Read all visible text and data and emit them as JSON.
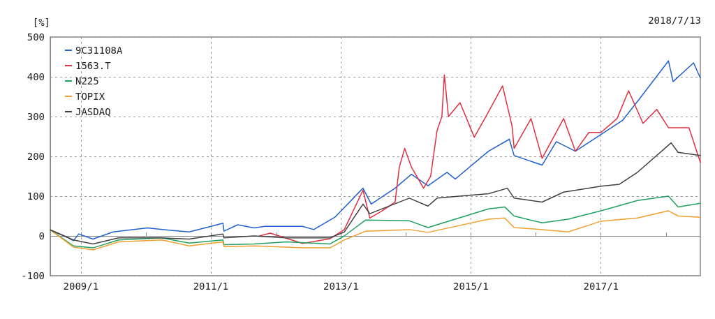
{
  "chart_data": {
    "type": "line",
    "ylabel": "[%]",
    "annotations": [
      "2018/7/13"
    ],
    "xlim": [
      "2008-07-13",
      "2018-07-13"
    ],
    "xticks": [
      {
        "value": "2009-01-01",
        "label": "2009/1"
      },
      {
        "value": "2010-01-01",
        "label": null
      },
      {
        "value": "2011-01-01",
        "label": "2011/1"
      },
      {
        "value": "2012-01-01",
        "label": null
      },
      {
        "value": "2013-01-01",
        "label": "2013/1"
      },
      {
        "value": "2014-01-01",
        "label": null
      },
      {
        "value": "2015-01-01",
        "label": "2015/1"
      },
      {
        "value": "2016-01-01",
        "label": null
      },
      {
        "value": "2017-01-01",
        "label": "2017/1"
      },
      {
        "value": "2018-01-01",
        "label": null
      }
    ],
    "ylim": [
      -100,
      500
    ],
    "yticks": [
      -100,
      0,
      100,
      200,
      300,
      400,
      500
    ],
    "grid": true,
    "legend": "top left",
    "marker": "none",
    "line_style": "solid",
    "series": [
      {
        "name": "9C31108A",
        "color": "#2060d0",
        "x": [
          "2008-07-14",
          "2008-10-10",
          "2008-11-20",
          "2008-12-20",
          "2009-03-10",
          "2009-07-01",
          "2010-01-10",
          "2010-05-01",
          "2010-09-01",
          "2011-01-10",
          "2011-03-10",
          "2011-03-16",
          "2011-06-01",
          "2011-09-01",
          "2011-11-01",
          "2012-05-30",
          "2012-08-01",
          "2012-11-28",
          "2013-05-05",
          "2013-06-20",
          "2013-11-01",
          "2014-02-01",
          "2014-05-05",
          "2014-08-20",
          "2014-10-05",
          "2015-04-10",
          "2015-08-05",
          "2015-09-01",
          "2016-02-05",
          "2016-04-25",
          "2016-08-10",
          "2017-01-01",
          "2017-05-01",
          "2017-08-01",
          "2018-01-15",
          "2018-02-10",
          "2018-06-05",
          "2018-07-13"
        ],
        "values": [
          15,
          -2,
          -12,
          5,
          -8,
          10,
          20,
          15,
          10,
          25,
          32,
          12,
          28,
          20,
          24,
          24,
          16,
          47,
          120,
          80,
          120,
          155,
          126,
          160,
          143,
          213,
          243,
          202,
          178,
          237,
          213,
          255,
          290,
          342,
          440,
          388,
          435,
          397
        ]
      },
      {
        "name": "1563.T",
        "color": "#e03040",
        "x": [
          "2011-10-01",
          "2011-12-01",
          "2012-05-30",
          "2012-11-01",
          "2013-01-20",
          "2013-05-05",
          "2013-06-12",
          "2013-08-20",
          "2013-11-01",
          "2013-11-25",
          "2013-12-25",
          "2014-02-01",
          "2014-04-10",
          "2014-05-20",
          "2014-06-25",
          "2014-07-22",
          "2014-08-05",
          "2014-08-28",
          "2014-11-01",
          "2015-01-20",
          "2015-04-10",
          "2015-06-28",
          "2015-08-20",
          "2015-09-01",
          "2015-12-05",
          "2016-02-05",
          "2016-06-05",
          "2016-08-10",
          "2016-10-25",
          "2017-01-01",
          "2017-04-01",
          "2017-06-05",
          "2017-08-25",
          "2017-11-10",
          "2018-01-15",
          "2018-05-10",
          "2018-07-13"
        ],
        "values": [
          0,
          7,
          -19,
          -7,
          16,
          115,
          45,
          63,
          85,
          173,
          220,
          173,
          120,
          150,
          265,
          300,
          405,
          300,
          335,
          248,
          312,
          377,
          277,
          220,
          295,
          195,
          295,
          213,
          260,
          260,
          295,
          365,
          283,
          318,
          272,
          272,
          185
        ]
      },
      {
        "name": "N225",
        "color": "#20a060",
        "x": [
          "2008-07-14",
          "2008-11-20",
          "2009-03-10",
          "2009-08-01",
          "2010-04-01",
          "2010-09-01",
          "2011-03-10",
          "2011-03-16",
          "2011-09-01",
          "2012-03-01",
          "2012-11-01",
          "2013-01-20",
          "2013-05-20",
          "2014-01-20",
          "2014-05-05",
          "2015-04-10",
          "2015-07-10",
          "2015-09-01",
          "2016-02-05",
          "2016-06-30",
          "2017-01-01",
          "2017-07-25",
          "2018-01-15",
          "2018-03-10",
          "2018-07-13"
        ],
        "values": [
          15,
          -25,
          -30,
          -10,
          -5,
          -18,
          -10,
          -22,
          -20,
          -15,
          -20,
          0,
          40,
          38,
          21,
          68,
          73,
          50,
          33,
          42,
          63,
          89,
          100,
          73,
          82
        ]
      },
      {
        "name": "TOPIX",
        "color": "#f0a030",
        "x": [
          "2008-07-14",
          "2008-11-20",
          "2009-03-10",
          "2009-08-01",
          "2010-04-01",
          "2010-09-01",
          "2011-03-10",
          "2011-03-16",
          "2011-09-01",
          "2012-06-01",
          "2012-11-01",
          "2013-01-20",
          "2013-05-20",
          "2014-01-20",
          "2014-05-05",
          "2015-04-10",
          "2015-07-10",
          "2015-09-01",
          "2016-02-05",
          "2016-06-30",
          "2017-01-01",
          "2017-07-25",
          "2018-01-15",
          "2018-03-10",
          "2018-07-13"
        ],
        "values": [
          15,
          -28,
          -35,
          -15,
          -10,
          -25,
          -15,
          -27,
          -25,
          -30,
          -30,
          -10,
          12,
          16,
          9,
          42,
          45,
          21,
          16,
          10,
          37,
          45,
          63,
          50,
          47
        ]
      },
      {
        "name": "JASDAQ",
        "color": "#404040",
        "x": [
          "2008-07-14",
          "2008-11-20",
          "2009-03-10",
          "2009-08-01",
          "2010-04-01",
          "2010-09-01",
          "2011-03-10",
          "2011-03-16",
          "2011-09-01",
          "2012-03-01",
          "2012-11-01",
          "2013-01-20",
          "2013-05-05",
          "2013-06-12",
          "2014-01-20",
          "2014-05-05",
          "2014-06-25",
          "2015-04-10",
          "2015-07-25",
          "2015-09-01",
          "2016-02-05",
          "2016-06-05",
          "2017-01-01",
          "2017-04-15",
          "2017-07-25",
          "2018-01-30",
          "2018-03-10",
          "2018-07-13"
        ],
        "values": [
          15,
          -10,
          -20,
          -5,
          -5,
          -8,
          5,
          -5,
          0,
          -5,
          -5,
          10,
          80,
          56,
          95,
          75,
          95,
          106,
          120,
          95,
          85,
          110,
          125,
          130,
          160,
          234,
          210,
          202
        ]
      }
    ]
  }
}
